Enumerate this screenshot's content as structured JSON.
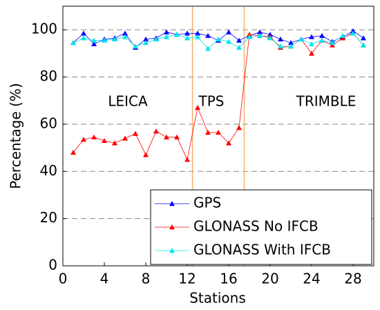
{
  "chart_data": {
    "type": "line",
    "xlabel": "Stations",
    "ylabel": "Percentage (%)",
    "x": [
      1,
      2,
      3,
      4,
      5,
      6,
      7,
      8,
      9,
      10,
      11,
      12,
      13,
      14,
      15,
      16,
      17,
      18,
      19,
      20,
      21,
      22,
      23,
      24,
      25,
      26,
      27,
      28,
      29
    ],
    "series": [
      {
        "name": "GPS",
        "color": "#0000ff",
        "values": [
          94.5,
          98.5,
          94,
          96,
          96.5,
          98.5,
          92.5,
          96,
          96.5,
          99,
          98,
          98.5,
          98.5,
          97.5,
          95.5,
          99,
          95.5,
          97.5,
          99,
          98,
          96,
          94.5,
          96,
          97,
          97.5,
          95,
          97,
          99.5,
          96.5
        ]
      },
      {
        "name": "GLONASS No IFCB",
        "color": "#ff0000",
        "values": [
          48,
          53.5,
          54.5,
          53,
          52,
          54,
          56,
          47,
          57,
          54.5,
          54.5,
          45,
          67,
          56.5,
          56.5,
          52,
          58.5,
          98,
          97.5,
          97,
          92.5,
          93,
          96,
          90,
          95.5,
          93.5,
          96.5,
          98.5,
          93.5
        ]
      },
      {
        "name": "GLONASS With IFCB",
        "color": "#00e5ee",
        "values": [
          94.5,
          96.5,
          95.5,
          95.5,
          96,
          97,
          93,
          94.5,
          96,
          97,
          98,
          96.5,
          97,
          92,
          96,
          95,
          92.5,
          97,
          97.5,
          96.5,
          93,
          93,
          96,
          94,
          95.5,
          94.5,
          97.5,
          98.5,
          93.5
        ]
      }
    ],
    "xlim": [
      0,
      30
    ],
    "xticks": [
      0,
      4,
      8,
      12,
      16,
      20,
      24,
      28
    ],
    "ylim": [
      0,
      110
    ],
    "yticks": [
      0,
      20,
      40,
      60,
      80,
      100
    ],
    "grid": true,
    "legend": "lower right",
    "vlines": [
      12.5,
      17.5
    ],
    "vline_color": "#f5b070",
    "annotations": [
      "LEICA",
      "TPS",
      "TRIMBLE"
    ]
  }
}
